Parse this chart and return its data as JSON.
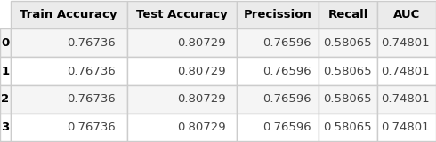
{
  "columns": [
    "Train Accuracy",
    "Test Accuracy",
    "Precission",
    "Recall",
    "AUC"
  ],
  "index": [
    "0",
    "1",
    "2",
    "3"
  ],
  "rows": [
    [
      0.76736,
      0.80729,
      0.76596,
      0.58065,
      0.74801
    ],
    [
      0.76736,
      0.80729,
      0.76596,
      0.58065,
      0.74801
    ],
    [
      0.76736,
      0.80729,
      0.76596,
      0.58065,
      0.74801
    ],
    [
      0.76736,
      0.80729,
      0.76596,
      0.58065,
      0.74801
    ]
  ],
  "header_bg": "#ebebeb",
  "row_bg_odd": "#ffffff",
  "row_bg_even": "#f5f5f5",
  "header_fontsize": 9.5,
  "cell_fontsize": 9.5,
  "header_color": "#000000",
  "index_color": "#000000",
  "cell_color": "#444444",
  "figsize": [
    4.9,
    1.6
  ],
  "dpi": 100
}
